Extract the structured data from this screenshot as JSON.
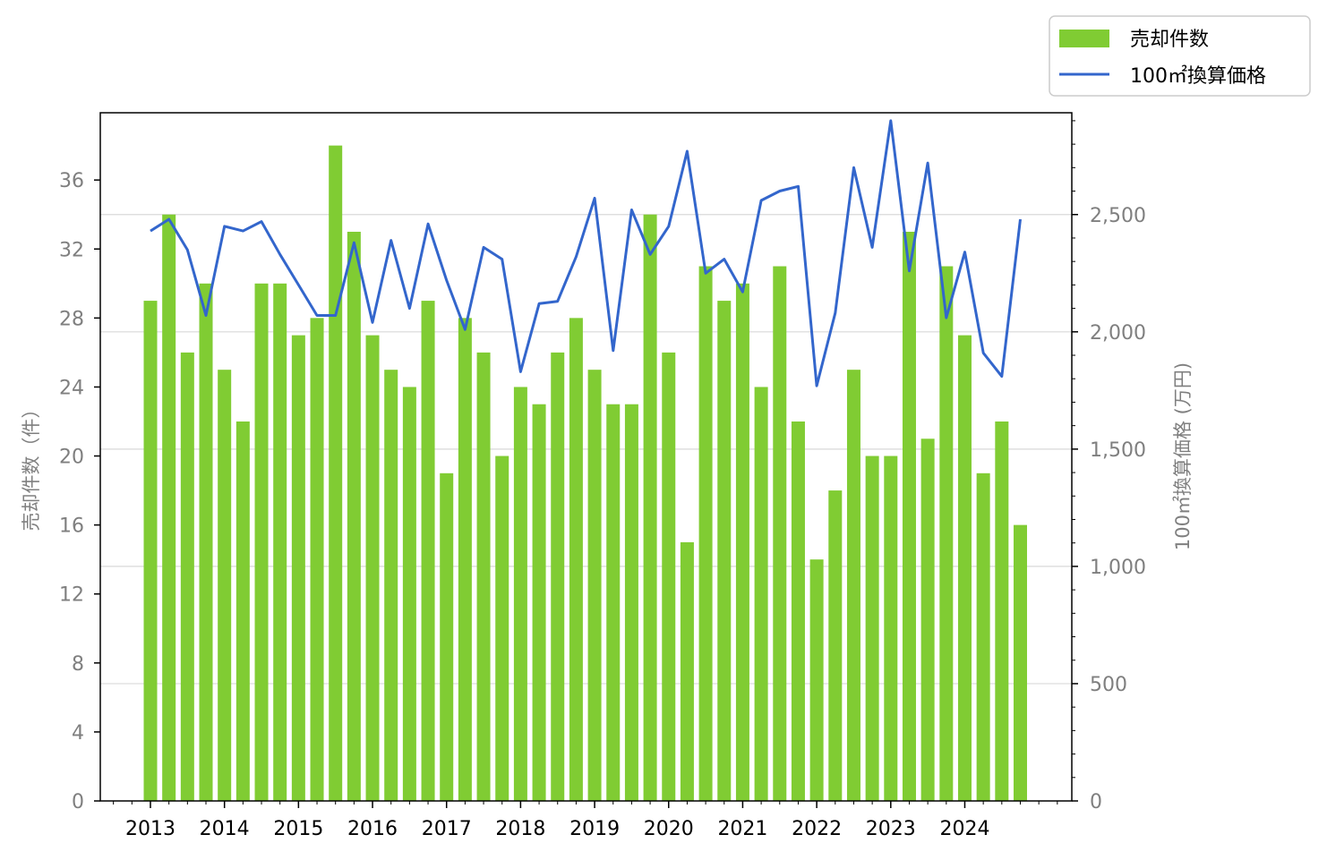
{
  "chart_data": {
    "type": "bar",
    "x": [
      "2013-Q1",
      "2013-Q2",
      "2013-Q3",
      "2013-Q4",
      "2014-Q1",
      "2014-Q2",
      "2014-Q3",
      "2014-Q4",
      "2015-Q1",
      "2015-Q2",
      "2015-Q3",
      "2015-Q4",
      "2016-Q1",
      "2016-Q2",
      "2016-Q3",
      "2016-Q4",
      "2017-Q1",
      "2017-Q2",
      "2017-Q3",
      "2017-Q4",
      "2018-Q1",
      "2018-Q2",
      "2018-Q3",
      "2018-Q4",
      "2019-Q1",
      "2019-Q2",
      "2019-Q3",
      "2019-Q4",
      "2020-Q1",
      "2020-Q2",
      "2020-Q3",
      "2020-Q4",
      "2021-Q1",
      "2021-Q2",
      "2021-Q3",
      "2021-Q4",
      "2022-Q1",
      "2022-Q2",
      "2022-Q3",
      "2022-Q4",
      "2023-Q1",
      "2023-Q2",
      "2023-Q3",
      "2023-Q4",
      "2024-Q1",
      "2024-Q2",
      "2024-Q3",
      "2024-Q4"
    ],
    "x_tick_labels": [
      "2013",
      "2014",
      "2015",
      "2016",
      "2017",
      "2018",
      "2019",
      "2020",
      "2021",
      "2022",
      "2023",
      "2024"
    ],
    "series": [
      {
        "name": "売却件数",
        "type": "bar",
        "axis": "left",
        "color": "#80cc33",
        "values": [
          29,
          34,
          26,
          30,
          25,
          22,
          30,
          30,
          27,
          28,
          38,
          33,
          27,
          25,
          24,
          29,
          19,
          28,
          26,
          20,
          24,
          23,
          26,
          28,
          25,
          23,
          23,
          34,
          26,
          15,
          31,
          29,
          30,
          24,
          31,
          22,
          14,
          18,
          25,
          20,
          20,
          33,
          21,
          31,
          27,
          19,
          22,
          16
        ]
      },
      {
        "name": "100㎡換算価格",
        "type": "line",
        "axis": "right",
        "color": "#3366cc",
        "values": [
          2430,
          2480,
          2350,
          2070,
          2450,
          2430,
          2470,
          2330,
          2200,
          2070,
          2070,
          2380,
          2040,
          2390,
          2100,
          2460,
          2220,
          2010,
          2360,
          2310,
          1830,
          2120,
          2130,
          2320,
          2570,
          1920,
          2520,
          2330,
          2450,
          2770,
          2250,
          2310,
          2170,
          2560,
          2600,
          2620,
          1770,
          2080,
          2700,
          2360,
          2900,
          2260,
          2720,
          2060,
          2340,
          1910,
          1810,
          2480
        ]
      }
    ],
    "y_left": {
      "label": "売却件数（件）",
      "ylim": [
        0,
        39.9
      ],
      "ticks": [
        0,
        4,
        8,
        12,
        16,
        20,
        24,
        28,
        32,
        36
      ],
      "tick_labels": [
        "0",
        "4",
        "8",
        "12",
        "16",
        "20",
        "24",
        "28",
        "32",
        "36"
      ]
    },
    "y_right": {
      "label": "100㎡換算価格 (万円)",
      "ylim": [
        0,
        2934
      ],
      "ticks": [
        0,
        500,
        1000,
        1500,
        2000,
        2500
      ],
      "tick_labels": [
        "0",
        "500",
        "1,000",
        "1,500",
        "2,000",
        "2,500"
      ]
    },
    "grid": "horizontal, right axis",
    "legend": {
      "placement": "top-right, outside plot",
      "entries": [
        "売却件数",
        "100㎡換算価格"
      ]
    }
  }
}
